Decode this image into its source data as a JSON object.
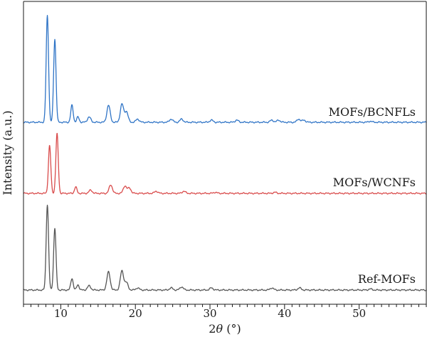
{
  "chart_data": {
    "type": "line",
    "xlabel_prefix": "2",
    "xlabel_symbol": "θ",
    "xlabel_unit": " (°)",
    "ylabel": "Intensity (a.u.)",
    "xlim": [
      5,
      59
    ],
    "x_ticks": [
      10,
      20,
      30,
      40,
      50
    ],
    "y_ticks": [],
    "grid": false,
    "legend": "none",
    "series": [
      {
        "name": "MOFs/BCNFLs",
        "color": "#2f74c6",
        "baseline_level": 2,
        "peaks": [
          [
            8.2,
            1.0
          ],
          [
            9.2,
            0.78
          ],
          [
            11.5,
            0.16
          ],
          [
            12.3,
            0.05
          ],
          [
            13.8,
            0.05
          ],
          [
            16.4,
            0.16
          ],
          [
            18.2,
            0.17
          ],
          [
            18.8,
            0.1
          ],
          [
            20.3,
            0.03
          ],
          [
            24.8,
            0.03
          ],
          [
            26.2,
            0.03
          ],
          [
            30.2,
            0.02
          ],
          [
            33.6,
            0.02
          ],
          [
            38.3,
            0.02
          ],
          [
            39.2,
            0.02
          ],
          [
            41.9,
            0.03
          ],
          [
            42.6,
            0.02
          ],
          [
            51.5,
            0.01
          ]
        ]
      },
      {
        "name": "MOFs/WCNFs",
        "color": "#d94b4b",
        "baseline_level": 1,
        "peaks": [
          [
            8.5,
            0.45
          ],
          [
            9.5,
            0.56
          ],
          [
            12.0,
            0.06
          ],
          [
            14.0,
            0.03
          ],
          [
            16.7,
            0.08
          ],
          [
            18.6,
            0.07
          ],
          [
            19.2,
            0.05
          ],
          [
            22.8,
            0.02
          ],
          [
            26.5,
            0.02
          ],
          [
            30.7,
            0.01
          ],
          [
            38.7,
            0.01
          ]
        ]
      },
      {
        "name": "Ref-MOFs",
        "color": "#555555",
        "baseline_level": 0,
        "peaks": [
          [
            8.2,
            0.8
          ],
          [
            9.2,
            0.58
          ],
          [
            11.5,
            0.11
          ],
          [
            12.3,
            0.05
          ],
          [
            13.8,
            0.04
          ],
          [
            16.4,
            0.17
          ],
          [
            18.2,
            0.18
          ],
          [
            18.8,
            0.07
          ],
          [
            20.3,
            0.02
          ],
          [
            24.8,
            0.02
          ],
          [
            26.2,
            0.03
          ],
          [
            30.2,
            0.02
          ],
          [
            38.3,
            0.02
          ],
          [
            42.0,
            0.02
          ],
          [
            51.5,
            0.01
          ]
        ]
      }
    ]
  }
}
